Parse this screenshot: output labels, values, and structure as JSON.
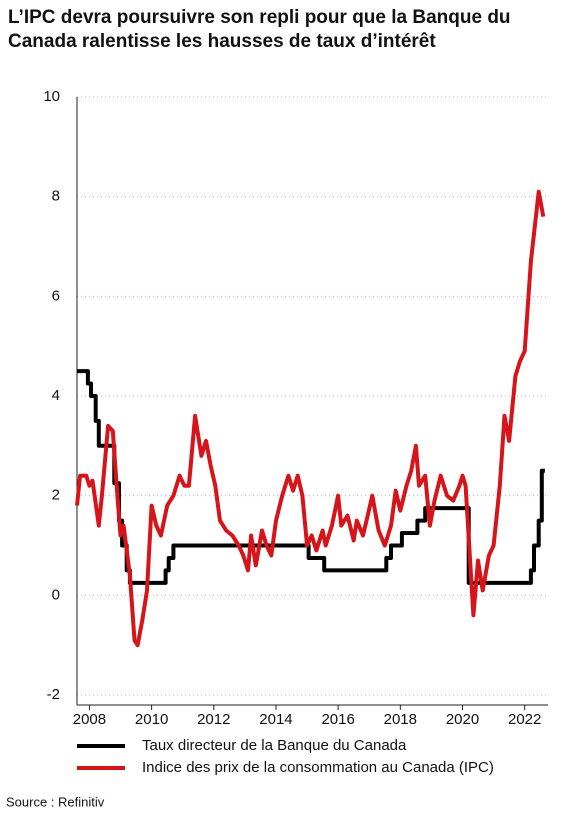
{
  "chart_data": {
    "type": "line",
    "title": "L’IPC devra poursuivre son repli pour que la Banque du Canada ralentisse les hausses de taux d’intérêt",
    "source": "Source : Refinitiv",
    "xlim": [
      2007.6,
      2022.75
    ],
    "xticks": [
      2008,
      2010,
      2012,
      2014,
      2016,
      2018,
      2020,
      2022
    ],
    "ylim": [
      -2,
      10
    ],
    "yticks": [
      -2,
      0,
      2,
      4,
      6,
      8,
      10
    ],
    "grid": true,
    "series": [
      {
        "name": "Taux directeur de la Banque du Canada",
        "color": "#000000",
        "x": [
          2007.6,
          2007.95,
          2007.95,
          2008.05,
          2008.05,
          2008.2,
          2008.2,
          2008.3,
          2008.3,
          2008.8,
          2008.8,
          2008.95,
          2008.95,
          2009.05,
          2009.05,
          2009.2,
          2009.2,
          2009.3,
          2009.3,
          2010.45,
          2010.45,
          2010.55,
          2010.55,
          2010.7,
          2010.7,
          2015.05,
          2015.05,
          2015.55,
          2015.55,
          2017.55,
          2017.55,
          2017.7,
          2017.7,
          2018.05,
          2018.05,
          2018.55,
          2018.55,
          2018.8,
          2018.8,
          2020.2,
          2020.2,
          2022.2,
          2022.2,
          2022.3,
          2022.3,
          2022.45,
          2022.45,
          2022.55,
          2022.55,
          2022.65
        ],
        "values": [
          4.5,
          4.5,
          4.25,
          4.25,
          4.0,
          4.0,
          3.5,
          3.5,
          3.0,
          3.0,
          2.25,
          2.25,
          1.5,
          1.5,
          1.0,
          1.0,
          0.5,
          0.5,
          0.25,
          0.25,
          0.5,
          0.5,
          0.75,
          0.75,
          1.0,
          1.0,
          0.75,
          0.75,
          0.5,
          0.5,
          0.75,
          0.75,
          1.0,
          1.0,
          1.25,
          1.25,
          1.5,
          1.5,
          1.75,
          1.75,
          0.25,
          0.25,
          0.5,
          0.5,
          1.0,
          1.0,
          1.5,
          1.5,
          2.5,
          2.5
        ]
      },
      {
        "name": "Indice des prix de la consommation au Canada (IPC)",
        "color": "#d7141a",
        "x": [
          2007.6,
          2007.7,
          2007.9,
          2008.0,
          2008.1,
          2008.3,
          2008.4,
          2008.6,
          2008.75,
          2008.9,
          2009.0,
          2009.1,
          2009.3,
          2009.45,
          2009.55,
          2009.7,
          2009.85,
          2010.0,
          2010.15,
          2010.3,
          2010.5,
          2010.7,
          2010.9,
          2011.05,
          2011.2,
          2011.4,
          2011.6,
          2011.75,
          2011.9,
          2012.05,
          2012.2,
          2012.4,
          2012.6,
          2012.8,
          2012.95,
          2013.1,
          2013.2,
          2013.35,
          2013.55,
          2013.7,
          2013.85,
          2014.0,
          2014.2,
          2014.4,
          2014.55,
          2014.7,
          2014.85,
          2015.0,
          2015.15,
          2015.3,
          2015.5,
          2015.6,
          2015.8,
          2016.0,
          2016.1,
          2016.3,
          2016.5,
          2016.6,
          2016.8,
          2016.95,
          2017.1,
          2017.3,
          2017.5,
          2017.7,
          2017.85,
          2018.0,
          2018.2,
          2018.35,
          2018.5,
          2018.6,
          2018.8,
          2018.95,
          2019.1,
          2019.3,
          2019.5,
          2019.7,
          2019.9,
          2020.0,
          2020.1,
          2020.35,
          2020.5,
          2020.65,
          2020.85,
          2021.0,
          2021.2,
          2021.35,
          2021.5,
          2021.7,
          2021.85,
          2022.0,
          2022.2,
          2022.45,
          2022.6
        ],
        "values": [
          1.8,
          2.4,
          2.4,
          2.2,
          2.3,
          1.4,
          2.0,
          3.4,
          3.3,
          2.0,
          1.2,
          1.4,
          0.4,
          -0.9,
          -1.0,
          -0.5,
          0.1,
          1.8,
          1.4,
          1.2,
          1.8,
          2.0,
          2.4,
          2.2,
          2.2,
          3.6,
          2.8,
          3.1,
          2.6,
          2.2,
          1.5,
          1.3,
          1.2,
          1.0,
          0.8,
          0.5,
          1.2,
          0.6,
          1.3,
          1.0,
          0.8,
          1.5,
          2.0,
          2.4,
          2.1,
          2.4,
          2.0,
          1.0,
          1.2,
          0.9,
          1.3,
          1.0,
          1.4,
          2.0,
          1.4,
          1.6,
          1.1,
          1.5,
          1.2,
          1.6,
          2.0,
          1.3,
          1.0,
          1.4,
          2.1,
          1.7,
          2.2,
          2.5,
          3.0,
          2.2,
          2.4,
          1.4,
          1.9,
          2.4,
          2.0,
          1.9,
          2.2,
          2.4,
          2.2,
          -0.4,
          0.7,
          0.1,
          0.8,
          1.0,
          2.2,
          3.6,
          3.1,
          4.4,
          4.7,
          4.9,
          6.7,
          8.1,
          7.6
        ]
      }
    ]
  }
}
